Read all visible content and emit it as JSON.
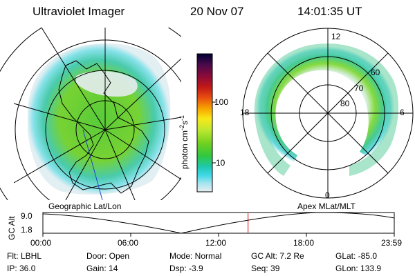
{
  "header": {
    "instrument": "Ultraviolet Imager",
    "date": "20 Nov 07",
    "time": "14:01:35 UT"
  },
  "left_panel": {
    "label": "Geographic Lat/Lon"
  },
  "right_panel": {
    "label": "Apex MLat/MLT",
    "mlt_labels": {
      "top": "12",
      "bottom": "0",
      "left": "18",
      "right": "6"
    },
    "mlat_labels": [
      "60",
      "70",
      "80"
    ]
  },
  "colorbar": {
    "unit_label": "photon cm",
    "unit_exp1": "-2",
    "unit_mid": "s",
    "unit_exp2": "-1",
    "scale": "log",
    "ticks": [
      "100",
      "10"
    ],
    "colors": [
      "#000033",
      "#2a0a4a",
      "#5a0a5a",
      "#8a0a3a",
      "#b01020",
      "#d02010",
      "#e85010",
      "#f58a00",
      "#fcc800",
      "#f0f030",
      "#b8e830",
      "#70d020",
      "#30c840",
      "#20c8a0",
      "#30d8e0",
      "#70e0e8",
      "#b0e8f0",
      "#dde8f0"
    ]
  },
  "altitude_plot": {
    "ylabel": "GC Alt",
    "y_top": "9.0",
    "y_bottom": "1.8",
    "x_ticks": [
      "00:00",
      "06:00",
      "12:00",
      "18:00",
      "23:59"
    ],
    "curve_color": "#000000",
    "marker_color": "#dd0000",
    "marker_time_frac": 0.584
  },
  "footer": {
    "filter": "Flt: LBHL",
    "ip": "IP: 36.0",
    "door": "Door: Open",
    "gain": "Gain: 14",
    "mode": "Mode: Normal",
    "dsp": "Dsp:    -3.9",
    "gc_alt": "GC Alt: 7.2 Re",
    "seq": "Seq: 39",
    "glat": "GLat: -85.0",
    "glon": "GLon: 133.9"
  }
}
